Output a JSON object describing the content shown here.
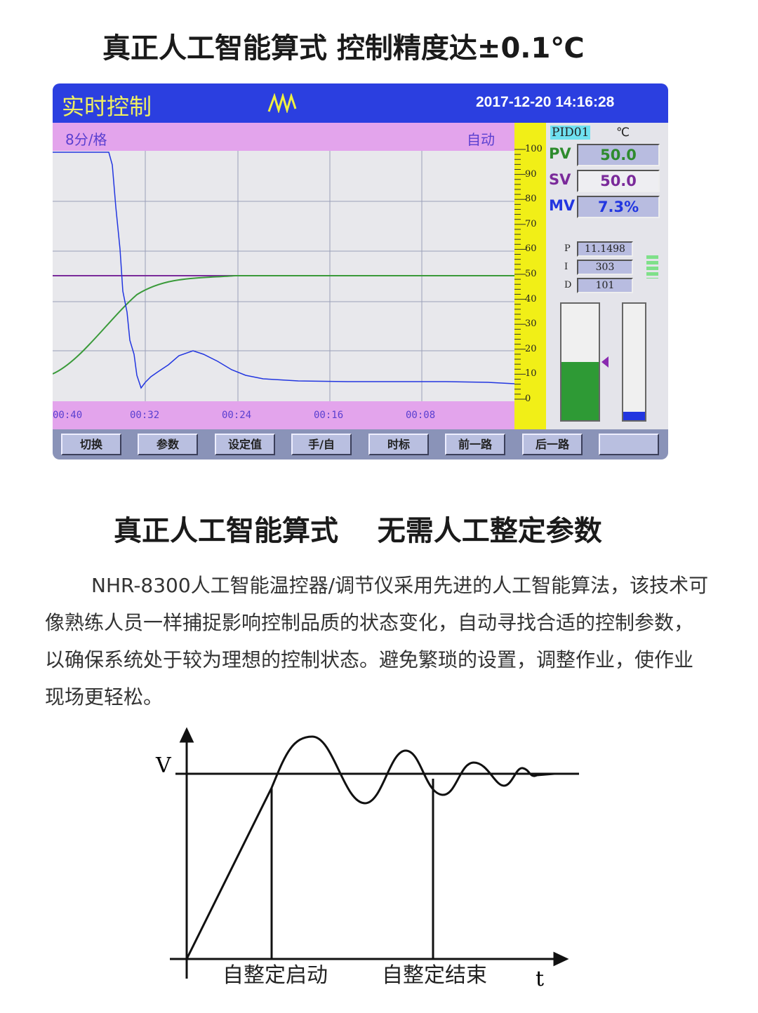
{
  "heading1": "真正人工智能算式  控制精度达±0.1℃",
  "screen": {
    "title": "实时控制",
    "datetime": "2017-12-20 14:16:28",
    "time_scale": "8分/格",
    "mode": "自动",
    "time_labels": [
      "00:40",
      "00:32",
      "00:24",
      "00:16",
      "00:08"
    ],
    "scale_labels": [
      "100",
      "90",
      "80",
      "70",
      "60",
      "50",
      "40",
      "30",
      "20",
      "10",
      "0"
    ],
    "channel": "PID01",
    "unit": "℃",
    "pv": {
      "label": "PV",
      "value": "50.0"
    },
    "sv": {
      "label": "SV",
      "value": "50.0"
    },
    "mv": {
      "label": "MV",
      "value": "7.3%"
    },
    "p": {
      "label": "P",
      "value": "11.1498"
    },
    "i": {
      "label": "I",
      "value": "303"
    },
    "d": {
      "label": "D",
      "value": "101"
    },
    "pv_bar_percent": 50,
    "mv_bar_percent": 7.3,
    "buttons": [
      "切换",
      "参数",
      "设定值",
      "手/自",
      "时标",
      "前一路",
      "后一路",
      ""
    ],
    "colors": {
      "titlebar": "#2b3fe0",
      "pv": "#2e8b2e",
      "sv": "#7a2a9a",
      "mv": "#2236e0"
    }
  },
  "heading2": "真正人工智能算式    无需人工整定参数",
  "paragraph": "NHR-8300人工智能温控器/调节仪采用先进的人工智能算法，该技术可像熟练人员一样捕捉影响控制品质的状态变化，自动寻找合适的控制参数，以确保系统处于较为理想的控制状态。避免繁琐的设置，调整作业，使作业现场更轻松。",
  "diagram": {
    "y_label": "V",
    "x_label": "t",
    "start_label": "自整定启动",
    "end_label": "自整定结束"
  }
}
